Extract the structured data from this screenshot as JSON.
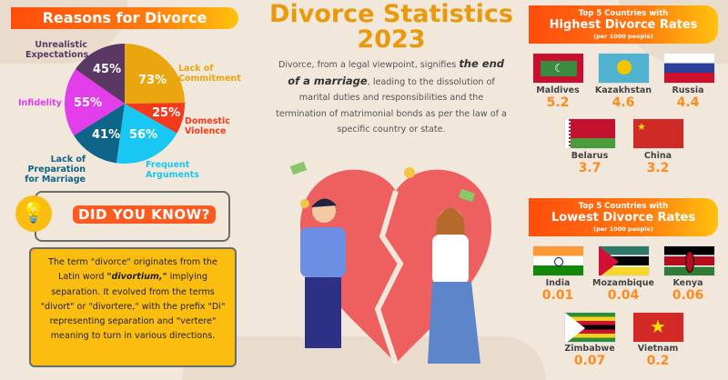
{
  "title": {
    "line1": "Divorce Statistics",
    "line2": "2023"
  },
  "intro": {
    "before": "Divorce, from a legal viewpoint, signifies",
    "emph": "the end of a marriage",
    "after": ", leading to the dissolution of marital duties and responsibilities and the termination of matrimonial bonds as per the law of a specific country or state."
  },
  "reasons": {
    "title": "Reasons for Divorce"
  },
  "chart_data": {
    "type": "pie",
    "title": "Reasons for Divorce",
    "slices": [
      {
        "label": "Lack of Commitment",
        "value": 73,
        "display": "73%",
        "color": "#e9a60e"
      },
      {
        "label": "Domestic Violence",
        "value": 25,
        "display": "25%",
        "color": "#f23b1d"
      },
      {
        "label": "Frequent Arguments",
        "value": 56,
        "display": "56%",
        "color": "#19c8f2"
      },
      {
        "label": "Lack of Preparation for Marriage",
        "value": 41,
        "display": "41%",
        "color": "#0f6489"
      },
      {
        "label": "Infidelity",
        "value": 55,
        "display": "55%",
        "color": "#e13ee9"
      },
      {
        "label": "Unrealistic Expectations",
        "value": 45,
        "display": "45%",
        "color": "#5b3764"
      }
    ]
  },
  "did_you_know": {
    "heading": "DID YOU KNOW?",
    "before": "The term \"divorce\" originates from the Latin word ",
    "emph": "\"divortium,\"",
    "after": " implying separation. It evolved from the terms \"divort\" or \"divortere,\" with the prefix \"Di\" representing separation and \"vertere\" meaning to turn in various directions."
  },
  "highest": {
    "line1": "Top 5 Countries with",
    "line2": "Highest Divorce Rates",
    "unit": "(per 1000 people)",
    "countries": [
      {
        "name": "Maldives",
        "value": "5.2"
      },
      {
        "name": "Kazakhstan",
        "value": "4.6"
      },
      {
        "name": "Russia",
        "value": "4.4"
      },
      {
        "name": "Belarus",
        "value": "3.7"
      },
      {
        "name": "China",
        "value": "3.2"
      }
    ]
  },
  "lowest": {
    "line1": "Top 5 Countries with",
    "line2": "Lowest Divorce Rates",
    "unit": "(per 1000 people)",
    "countries": [
      {
        "name": "India",
        "value": "0.01"
      },
      {
        "name": "Mozambique",
        "value": "0.04"
      },
      {
        "name": "Kenya",
        "value": "0.06"
      },
      {
        "name": "Zimbabwe",
        "value": "0.07"
      },
      {
        "name": "Vietnam",
        "value": "0.2"
      }
    ]
  }
}
